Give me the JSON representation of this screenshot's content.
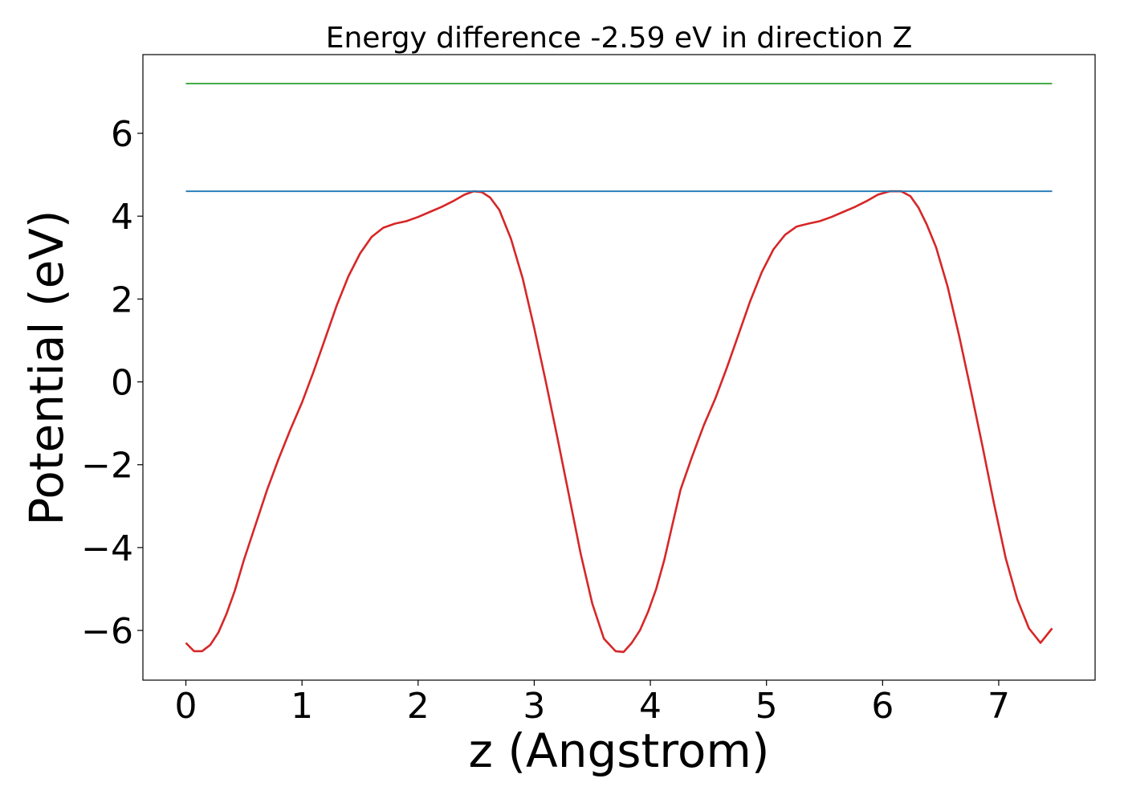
{
  "chart_data": {
    "type": "line",
    "title": "Energy difference -2.59 eV in direction Z",
    "xlabel": "z (Angstrom)",
    "ylabel": "Potential (eV)",
    "xlim": [
      -0.37,
      7.83
    ],
    "ylim": [
      -7.2,
      7.9
    ],
    "xticks": [
      0,
      1,
      2,
      3,
      4,
      5,
      6,
      7
    ],
    "xtick_labels": [
      "0",
      "1",
      "2",
      "3",
      "4",
      "5",
      "6",
      "7"
    ],
    "yticks": [
      -6,
      -4,
      -2,
      0,
      2,
      4,
      6
    ],
    "ytick_labels": [
      "−6",
      "−4",
      "−2",
      "0",
      "2",
      "4",
      "6"
    ],
    "grid": false,
    "series": [
      {
        "color": "#d62728",
        "x": [
          0.0,
          0.07,
          0.14,
          0.21,
          0.28,
          0.35,
          0.42,
          0.5,
          0.6,
          0.7,
          0.8,
          0.9,
          1.0,
          1.1,
          1.2,
          1.3,
          1.4,
          1.5,
          1.6,
          1.7,
          1.8,
          1.9,
          2.0,
          2.1,
          2.2,
          2.3,
          2.4,
          2.48,
          2.55,
          2.62,
          2.7,
          2.8,
          2.9,
          3.0,
          3.1,
          3.2,
          3.3,
          3.4,
          3.5,
          3.6,
          3.7,
          3.77,
          3.84,
          3.91,
          3.98,
          4.05,
          4.12,
          4.19,
          4.26,
          4.36,
          4.46,
          4.56,
          4.66,
          4.76,
          4.86,
          4.96,
          5.06,
          5.16,
          5.26,
          5.36,
          5.46,
          5.56,
          5.66,
          5.76,
          5.86,
          5.96,
          6.06,
          6.16,
          6.24,
          6.31,
          6.38,
          6.46,
          6.56,
          6.66,
          6.76,
          6.86,
          6.96,
          7.06,
          7.16,
          7.26,
          7.36,
          7.46
        ],
        "values": [
          -6.3,
          -6.5,
          -6.5,
          -6.35,
          -6.05,
          -5.6,
          -5.05,
          -4.3,
          -3.45,
          -2.6,
          -1.85,
          -1.15,
          -0.5,
          0.25,
          1.05,
          1.85,
          2.55,
          3.1,
          3.5,
          3.72,
          3.82,
          3.88,
          3.98,
          4.1,
          4.22,
          4.36,
          4.52,
          4.6,
          4.58,
          4.45,
          4.15,
          3.45,
          2.5,
          1.3,
          0.0,
          -1.35,
          -2.75,
          -4.15,
          -5.35,
          -6.2,
          -6.5,
          -6.52,
          -6.3,
          -6.0,
          -5.55,
          -5.0,
          -4.3,
          -3.45,
          -2.6,
          -1.8,
          -1.05,
          -0.4,
          0.35,
          1.15,
          1.95,
          2.65,
          3.2,
          3.55,
          3.75,
          3.82,
          3.88,
          3.98,
          4.1,
          4.22,
          4.36,
          4.52,
          4.6,
          4.6,
          4.48,
          4.2,
          3.8,
          3.25,
          2.3,
          1.1,
          -0.2,
          -1.55,
          -2.95,
          -4.25,
          -5.25,
          -5.95,
          -6.3,
          -5.95
        ]
      },
      {
        "color": "#1f77b4",
        "x": [
          0.0,
          7.46
        ],
        "values": [
          4.6,
          4.6
        ]
      },
      {
        "color": "#2ca02c",
        "x": [
          0.0,
          7.46
        ],
        "values": [
          7.2,
          7.2
        ]
      }
    ]
  }
}
